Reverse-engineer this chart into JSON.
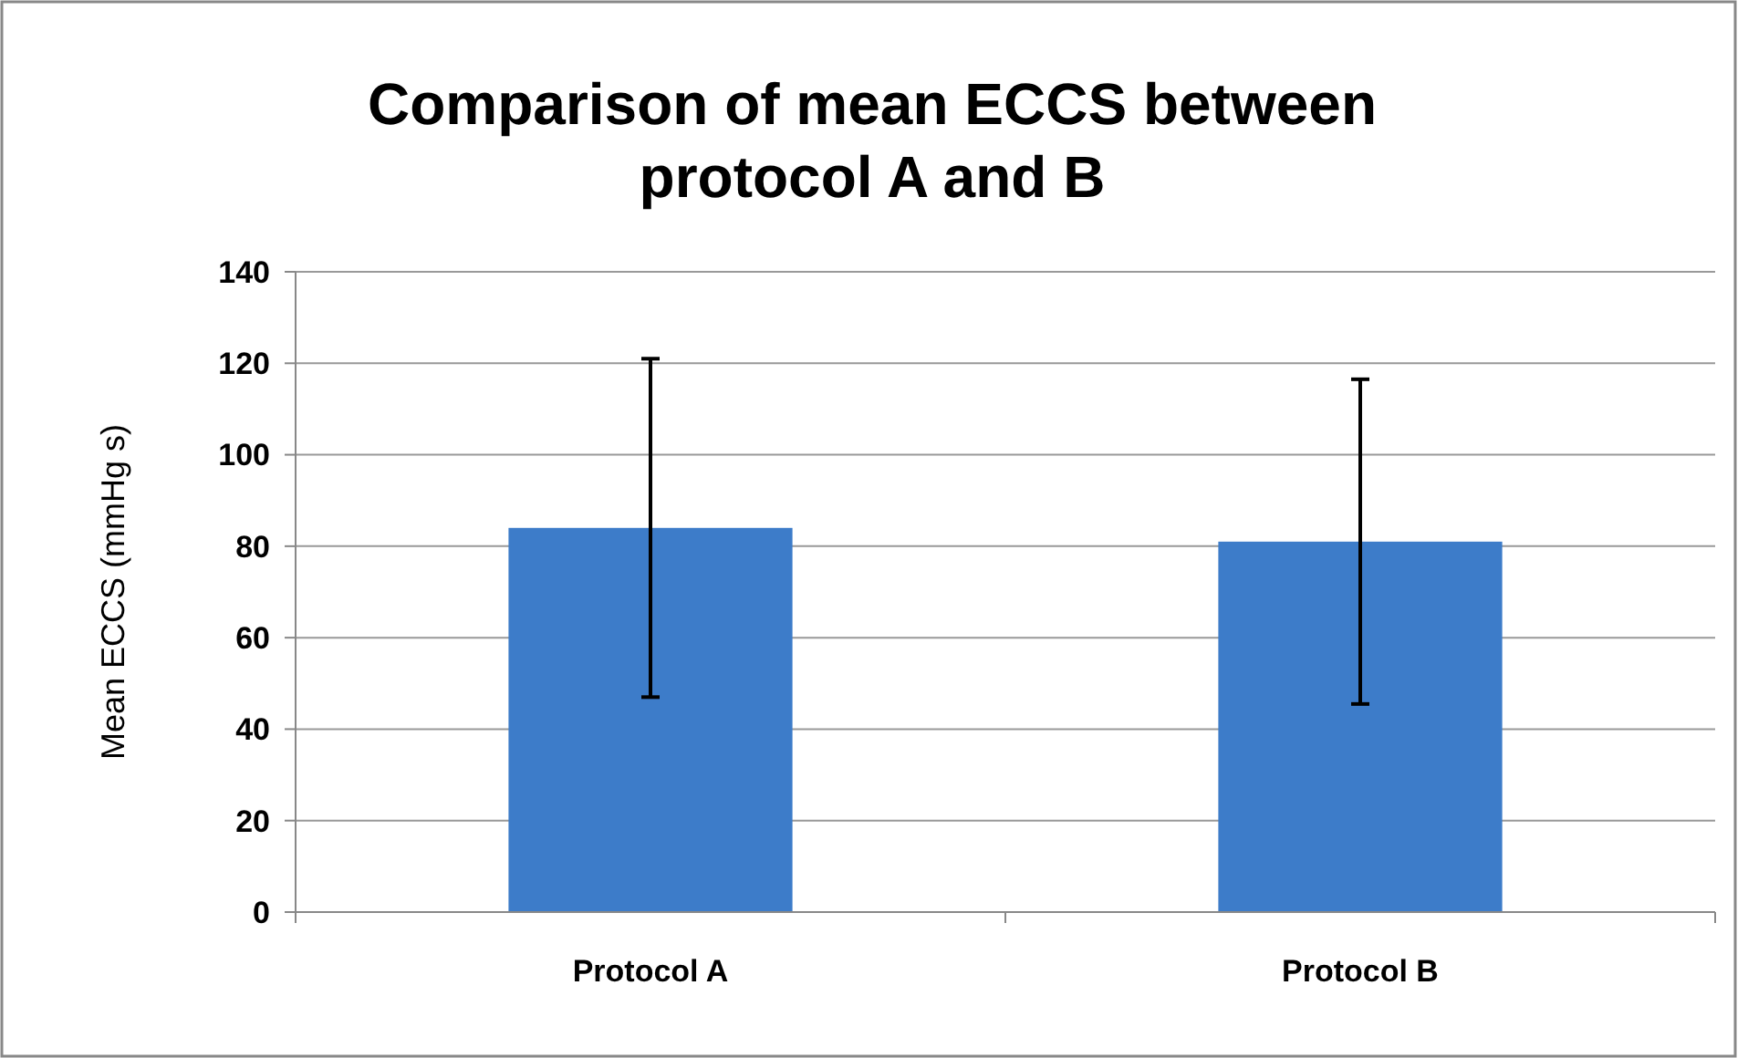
{
  "chart_data": {
    "type": "bar",
    "title": "Comparison of mean ECCS between protocol A and B",
    "ylabel": "Mean ECCS (mmHg s)",
    "categories": [
      "Protocol A",
      "Protocol B"
    ],
    "values": [
      84,
      81
    ],
    "errors": [
      37,
      35.5
    ],
    "color": "#3d7cc9",
    "ylim": [
      0,
      140
    ],
    "yticks": [
      0,
      20,
      40,
      60,
      80,
      100,
      120,
      140
    ],
    "grid": "y"
  }
}
